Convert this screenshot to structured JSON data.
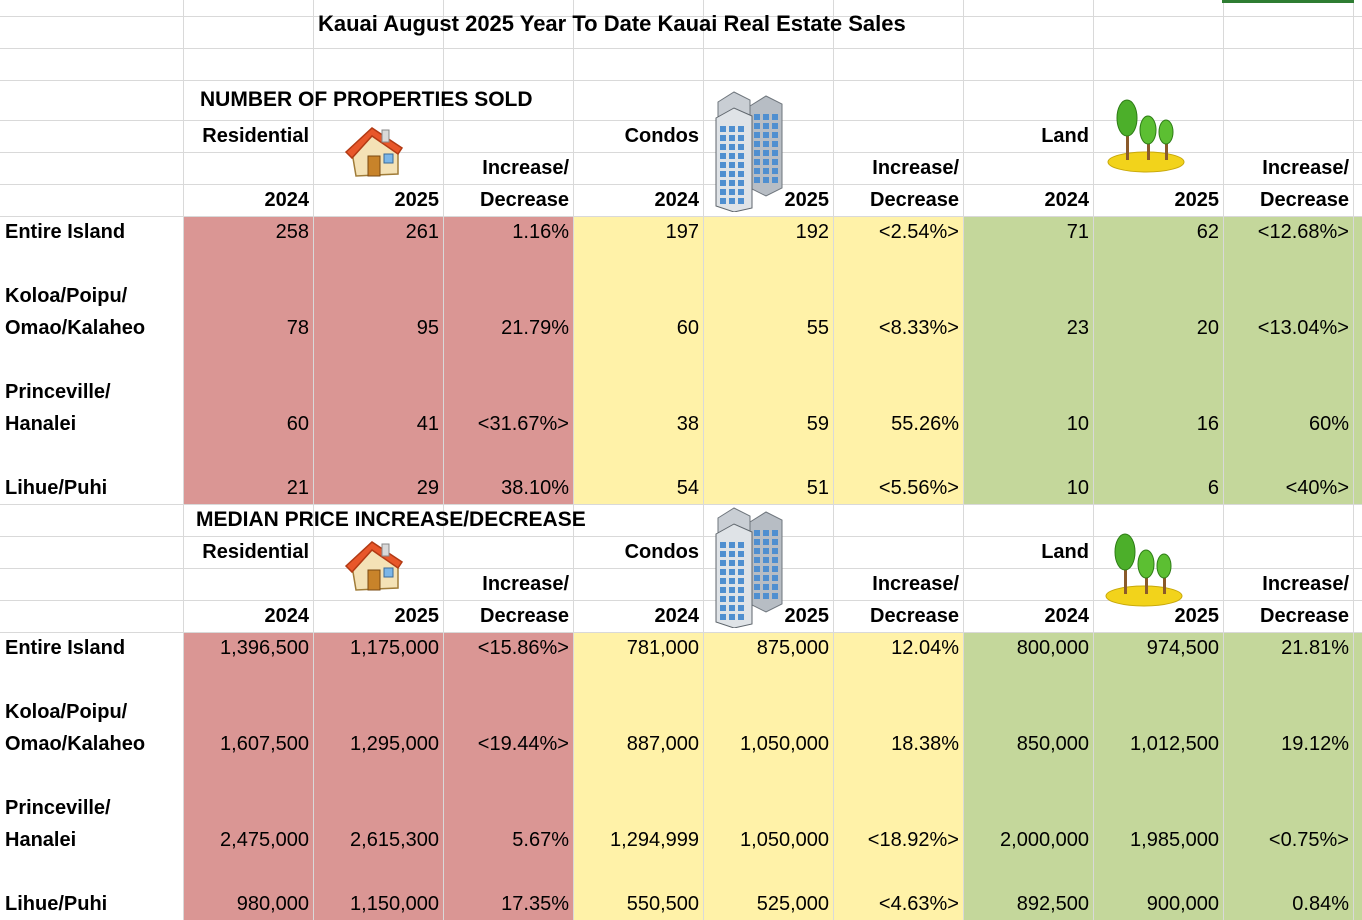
{
  "title": "Kauai August 2025 Year To Date Kauai Real Estate Sales",
  "colors": {
    "residential": "#da9694",
    "condos": "#fff2a8",
    "land": "#c4d79b",
    "grid": "#d9d9d9"
  },
  "icons": {
    "residential": "house-icon",
    "condos": "buildings-icon",
    "land": "trees-icon"
  },
  "sections": [
    {
      "heading": "NUMBER OF PROPERTIES SOLD",
      "groups": [
        "Residential",
        "Condos",
        "Land"
      ],
      "change_top": "Increase/",
      "change_bottom": "Decrease",
      "years": [
        "2024",
        "2025"
      ],
      "rows": [
        {
          "area1": "Entire Island",
          "area2": "",
          "values": [
            "258",
            "261",
            "1.16%",
            "197",
            "192",
            "<2.54%>",
            "71",
            "62",
            "<12.68%>"
          ]
        },
        {
          "area1": "Koloa/Poipu/",
          "area2": "Omao/Kalaheo",
          "values": [
            "78",
            "95",
            "21.79%",
            "60",
            "55",
            "<8.33%>",
            "23",
            "20",
            "<13.04%>"
          ]
        },
        {
          "area1": "Princeville/",
          "area2": "Hanalei",
          "values": [
            "60",
            "41",
            "<31.67%>",
            "38",
            "59",
            "55.26%",
            "10",
            "16",
            "60%"
          ]
        },
        {
          "area1": "Lihue/Puhi",
          "area2": "",
          "values": [
            "21",
            "29",
            "38.10%",
            "54",
            "51",
            "<5.56%>",
            "10",
            "6",
            "<40%>"
          ]
        }
      ]
    },
    {
      "heading": "MEDIAN PRICE INCREASE/DECREASE",
      "groups": [
        "Residential",
        "Condos",
        "Land"
      ],
      "change_top": "Increase/",
      "change_bottom": "Decrease",
      "years": [
        "2024",
        "2025"
      ],
      "rows": [
        {
          "area1": "Entire Island",
          "area2": "",
          "values": [
            "1,396,500",
            "1,175,000",
            "<15.86%>",
            "781,000",
            "875,000",
            "12.04%",
            "800,000",
            "974,500",
            "21.81%"
          ]
        },
        {
          "area1": "Koloa/Poipu/",
          "area2": "Omao/Kalaheo",
          "values": [
            "1,607,500",
            "1,295,000",
            "<19.44%>",
            "887,000",
            "1,050,000",
            "18.38%",
            "850,000",
            "1,012,500",
            "19.12%"
          ]
        },
        {
          "area1": "Princeville/",
          "area2": "Hanalei",
          "values": [
            "2,475,000",
            "2,615,300",
            "5.67%",
            "1,294,999",
            "1,050,000",
            "<18.92%>",
            "2,000,000",
            "1,985,000",
            "<0.75%>"
          ]
        },
        {
          "area1": "Lihue/Puhi",
          "area2": "",
          "values": [
            "980,000",
            "1,150,000",
            "17.35%",
            "550,500",
            "525,000",
            "<4.63%>",
            "892,500",
            "900,000",
            "0.84%"
          ]
        }
      ]
    }
  ]
}
